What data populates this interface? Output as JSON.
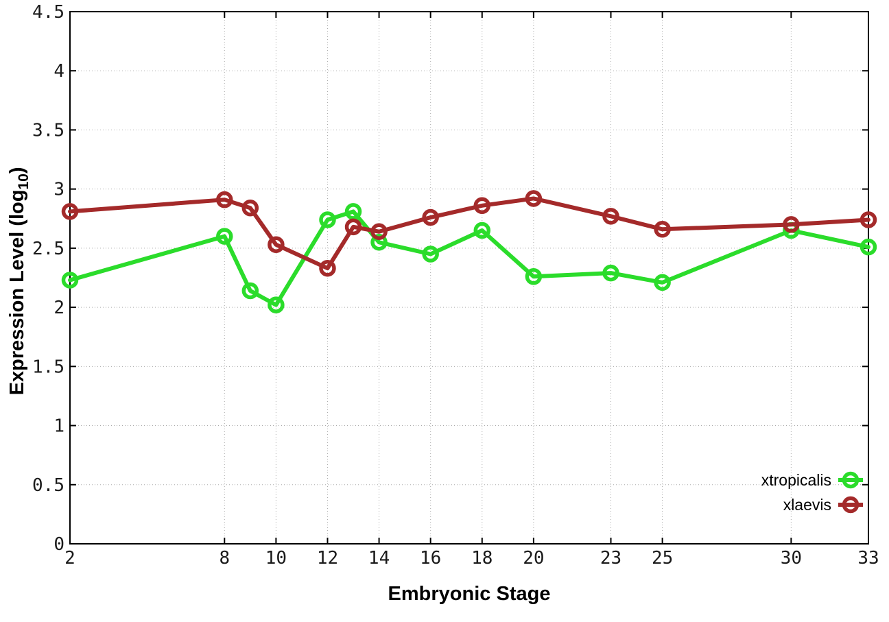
{
  "figure": {
    "background": "#ffffff",
    "xlabel": "Embryonic Stage",
    "ylabel_prefix": "Expression Level (log",
    "ylabel_sub": "10",
    "ylabel_suffix": ")"
  },
  "chart_data": {
    "type": "line",
    "title": "",
    "xlabel": "Embryonic Stage",
    "ylabel": "Expression Level (log10)",
    "xlim": [
      2,
      33
    ],
    "ylim": [
      0,
      4.5
    ],
    "grid": true,
    "grid_style": "dotted",
    "legend_position": "bottom-right-inside",
    "marker": "open-circle",
    "x": [
      2,
      8,
      9,
      10,
      12,
      13,
      14,
      16,
      18,
      20,
      23,
      25,
      30,
      33
    ],
    "x_ticks": [
      2,
      8,
      10,
      12,
      14,
      16,
      18,
      20,
      23,
      25,
      30,
      33
    ],
    "y_ticks": [
      0,
      0.5,
      1,
      1.5,
      2,
      2.5,
      3,
      3.5,
      4,
      4.5
    ],
    "series": [
      {
        "name": "xtropicalis",
        "color": "#2bdc2b",
        "values": [
          2.23,
          2.6,
          2.14,
          2.02,
          2.74,
          2.81,
          2.55,
          2.45,
          2.65,
          2.26,
          2.29,
          2.21,
          2.65,
          2.51
        ]
      },
      {
        "name": "xlaevis",
        "color": "#a42a2a",
        "values": [
          2.81,
          2.91,
          2.84,
          2.53,
          2.33,
          2.68,
          2.64,
          2.76,
          2.86,
          2.92,
          2.77,
          2.66,
          2.7,
          2.74
        ]
      }
    ]
  }
}
